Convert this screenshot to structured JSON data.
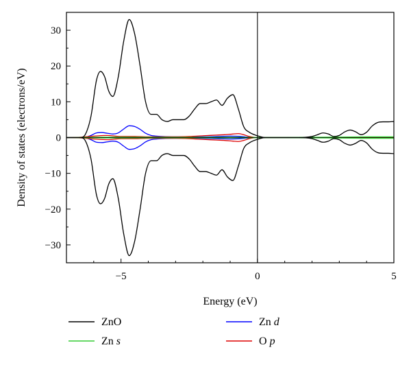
{
  "chart_data": {
    "type": "line",
    "title": "",
    "xlabel": "Energy (eV)",
    "ylabel": "Density of states (electrons/eV)",
    "xlim": [
      -7,
      5
    ],
    "ylim": [
      -35,
      35
    ],
    "x_ticks": [
      -5,
      0,
      5
    ],
    "x_tick_labels": [
      "−5",
      "0",
      "5"
    ],
    "y_ticks": [
      -30,
      -20,
      -10,
      0,
      10,
      20,
      30
    ],
    "y_tick_labels": [
      "−30",
      "−20",
      "−10",
      "0",
      "10",
      "20",
      "30"
    ],
    "grid": false,
    "symmetric_spin": true,
    "reference_lines": [
      {
        "axis": "x",
        "value": 0
      },
      {
        "axis": "y",
        "value": 0
      }
    ],
    "legend_position": "bottom",
    "series": [
      {
        "name": "ZnO",
        "name_main": "ZnO",
        "name_italic": "",
        "color": "#000000",
        "x": [
          -7.0,
          -6.5,
          -6.3,
          -6.1,
          -5.9,
          -5.75,
          -5.6,
          -5.45,
          -5.3,
          -5.1,
          -4.9,
          -4.7,
          -4.5,
          -4.3,
          -4.1,
          -3.9,
          -3.7,
          -3.5,
          -3.3,
          -3.1,
          -2.9,
          -2.7,
          -2.5,
          -2.3,
          -2.1,
          -1.9,
          -1.7,
          -1.5,
          -1.3,
          -1.1,
          -0.9,
          -0.7,
          -0.5,
          -0.3,
          0.0,
          0.3,
          0.6,
          1.0,
          1.5,
          2.0,
          2.2,
          2.4,
          2.6,
          2.8,
          3.0,
          3.2,
          3.4,
          3.6,
          3.8,
          4.0,
          4.2,
          4.4,
          4.6,
          4.8,
          5.0
        ],
        "values": [
          0,
          0,
          1,
          6,
          16,
          18.5,
          17,
          13,
          11.5,
          17,
          27,
          33,
          29,
          20,
          10,
          6.5,
          6.5,
          5,
          4.5,
          5,
          5,
          5,
          6,
          8,
          9.5,
          9.5,
          10,
          10.5,
          9,
          11,
          12,
          8,
          3,
          1.5,
          0.5,
          0,
          0,
          0,
          0,
          0.3,
          0.8,
          1.3,
          1,
          0.3,
          0.6,
          1.6,
          2.1,
          1.6,
          0.8,
          1.5,
          3.2,
          4.2,
          4.4,
          4.4,
          4.5
        ]
      },
      {
        "name": "Zn d",
        "name_main": "Zn ",
        "name_italic": "d",
        "color": "#0000ff",
        "x": [
          -7.0,
          -6.4,
          -6.1,
          -5.9,
          -5.7,
          -5.5,
          -5.3,
          -5.1,
          -4.9,
          -4.7,
          -4.5,
          -4.3,
          -4.1,
          -3.9,
          -3.7,
          -3.5,
          -3.0,
          -2.5,
          -2.0,
          -1.5,
          -1.0,
          -0.6,
          -0.3,
          0.0,
          5.0
        ],
        "values": [
          0,
          0,
          0.6,
          1.3,
          1.4,
          1.2,
          1.0,
          1.3,
          2.4,
          3.3,
          3.1,
          2.3,
          1.2,
          0.6,
          0.4,
          0.3,
          0.2,
          0.2,
          0.2,
          0.3,
          0.4,
          0.3,
          0.1,
          0,
          0
        ]
      },
      {
        "name": "Zn s",
        "name_main": "Zn ",
        "name_italic": "s",
        "color": "#33cc33",
        "x": [
          -7.0,
          -6.0,
          -5.0,
          -4.0,
          -3.0,
          -2.0,
          -1.0,
          0.0,
          1.0,
          2.0,
          3.0,
          4.0,
          5.0
        ],
        "values": [
          0,
          0.1,
          0.15,
          0.1,
          0.1,
          0.1,
          0.1,
          0.05,
          0.05,
          0.1,
          0.15,
          0.2,
          0.2
        ]
      },
      {
        "name": "O p",
        "name_main": "O ",
        "name_italic": "p",
        "color": "#dd0000",
        "x": [
          -7.0,
          -6.5,
          -6.0,
          -5.5,
          -5.0,
          -4.5,
          -4.0,
          -3.5,
          -3.0,
          -2.5,
          -2.0,
          -1.5,
          -1.2,
          -0.9,
          -0.7,
          -0.5,
          -0.3,
          0.0,
          5.0
        ],
        "values": [
          0,
          0.1,
          0.4,
          0.6,
          0.3,
          0.3,
          0.2,
          0.2,
          0.2,
          0.3,
          0.5,
          0.7,
          0.8,
          1.0,
          1.1,
          0.8,
          0.3,
          0,
          0
        ]
      }
    ]
  }
}
